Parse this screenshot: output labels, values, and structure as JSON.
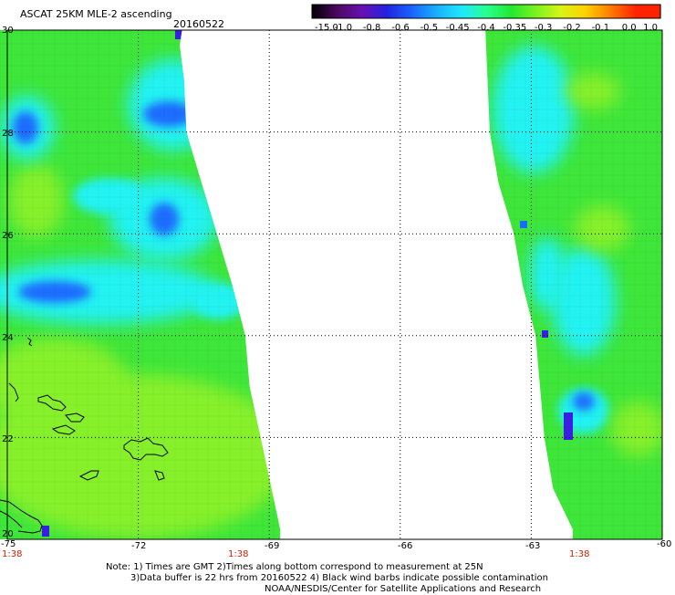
{
  "title": "ASCAT 25KM MLE-2 ascending",
  "date": "20160522",
  "colorbar": {
    "ticks": [
      "-15.0",
      "-1.0",
      "-0.8",
      "-0.6",
      "-0.5",
      "-0.45",
      "-0.4",
      "-0.35",
      "-0.3",
      "-0.2",
      "-0.1",
      "0.0",
      "1.0"
    ],
    "colors": [
      "#000000",
      "#4a0a60",
      "#6a0fb4",
      "#2222e0",
      "#1a64ff",
      "#18b0ff",
      "#1ee8ff",
      "#28ff90",
      "#22e830",
      "#7cf41c",
      "#d8f418",
      "#ffd000",
      "#ff7a00",
      "#ff2200"
    ]
  },
  "lat_labels": [
    "30",
    "28",
    "26",
    "24",
    "22",
    "20"
  ],
  "lon_labels": [
    "-75",
    "-72",
    "-69",
    "-66",
    "-63",
    "-60"
  ],
  "time_labels": [
    "1:38",
    "1:38",
    "1:38"
  ],
  "notes": [
    "Note: 1) Times are GMT 2)Times along bottom correspond to measurement at 25N",
    "3)Data buffer is 22 hrs from 20160522 4) Black wind barbs indicate possible contamination",
    "NOAA/NESDIS/Center for Satellite Applications and Research"
  ],
  "map": {
    "lat_range": [
      20,
      30
    ],
    "lon_range": [
      -75,
      -60
    ],
    "colors": {
      "base": "#3ee63a",
      "cyan": "#20f2f2",
      "blue": "#1a6cff",
      "deep": "#3a1ee6",
      "lime": "#86f02a"
    },
    "left_swath": {
      "edge_lat": [
        30,
        29.7,
        29,
        28,
        27,
        26,
        25,
        24,
        23,
        22,
        21,
        20.2
      ],
      "edge_lon": [
        -71.0,
        -71.05,
        -70.95,
        -70.9,
        -70.55,
        -70.2,
        -69.85,
        -69.55,
        -69.45,
        -69.2,
        -68.95,
        -68.75
      ]
    },
    "right_swath": {
      "edge_lat": [
        30,
        29,
        28,
        27,
        26,
        25,
        24,
        23,
        22,
        21,
        20.2
      ],
      "edge_lon": [
        -64.05,
        -64.0,
        -63.95,
        -63.75,
        -63.4,
        -63.2,
        -62.9,
        -62.8,
        -62.7,
        -62.5,
        -62.05
      ]
    }
  }
}
